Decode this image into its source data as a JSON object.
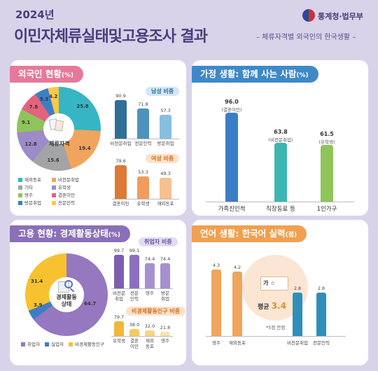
{
  "header": {
    "year": "2024년",
    "title": "이민자체류실태및고용조사 결과",
    "subtitle": "– 체류자격별 외국인의 한국생활 –",
    "logo_text": "통계청·법무부"
  },
  "panels": {
    "foreigners": {
      "title": "외국인 현황",
      "unit": "(%)",
      "center_label": "체류자격",
      "male_pill": "남성 비중",
      "female_pill": "여성 비중"
    },
    "family": {
      "title": "가정 생활: 함께 사는 사람",
      "unit": "(%)"
    },
    "employment": {
      "title": "고용 현황: 경제활동상태",
      "unit": "(%)",
      "center_label_1": "경제활동",
      "center_label_2": "상태",
      "employed_pill": "취업자 비중",
      "inactive_pill": "비경제활동인구 비중"
    },
    "korean": {
      "title": "언어 생활: 한국어 실력",
      "unit": "(점)",
      "center_book_text": "가 ☆",
      "average_label": "평균",
      "average_value": "3.4",
      "note": "*5점 만점"
    }
  },
  "chart_data": [
    {
      "type": "pie",
      "title": "외국인 현황",
      "center_label": "체류자격",
      "slices": [
        {
          "name": "재외동포",
          "value": 25.8,
          "color": "#36b6c4"
        },
        {
          "name": "비전문취업",
          "value": 19.4,
          "color": "#f1a45d"
        },
        {
          "name": "기타",
          "value": 15.6,
          "color": "#a2a4a6"
        },
        {
          "name": "유학생",
          "value": 12.8,
          "color": "#9d8ac9"
        },
        {
          "name": "영주",
          "value": 9.1,
          "color": "#8fc45a"
        },
        {
          "name": "결혼이민",
          "value": 7.8,
          "color": "#e3637e"
        },
        {
          "name": "방문취업",
          "value": 5.3,
          "color": "#3c7ec6"
        },
        {
          "name": "전문인력",
          "value": 4.2,
          "color": "#f7c94a"
        }
      ],
      "legend": [
        "재외동포",
        "비전문취업",
        "기타",
        "유학생",
        "영주",
        "결혼이민",
        "방문취업",
        "전문인력"
      ]
    },
    {
      "type": "bar",
      "title": "남성 비중",
      "categories": [
        "비전문취업",
        "전문인력",
        "방문취업"
      ],
      "values": [
        90.9,
        71.8,
        57.3
      ],
      "colors": [
        "#2f6f96",
        "#4d92bd",
        "#86bfdf"
      ]
    },
    {
      "type": "bar",
      "title": "여성 비중",
      "categories": [
        "결혼이민",
        "유학생",
        "재외동포"
      ],
      "values": [
        79.6,
        53.3,
        49.3
      ],
      "colors": [
        "#dd7a35",
        "#f09c5c",
        "#f7c090"
      ]
    },
    {
      "type": "bar",
      "title": "가정 생활: 함께 사는 사람",
      "unit": "%",
      "categories": [
        "가족친인척",
        "직장동료 등",
        "1인가구"
      ],
      "values": [
        96.0,
        63.8,
        61.5
      ],
      "sublabels": [
        "(결혼이민)",
        "(비전문취업)",
        "(유학생)"
      ],
      "colors": [
        "#3c7ec6",
        "#3cb6b0",
        "#8fc45a"
      ]
    },
    {
      "type": "pie",
      "title": "고용 현황: 경제활동상태",
      "center_label": "경제활동 상태",
      "slices": [
        {
          "name": "취업자",
          "value": 64.7,
          "color": "#9578c0"
        },
        {
          "name": "실업자",
          "value": 3.9,
          "color": "#3c7ec6"
        },
        {
          "name": "비경제활동인구",
          "value": 31.4,
          "color": "#f7c22f"
        }
      ],
      "legend": [
        "취업자",
        "실업자",
        "비경제활동인구"
      ]
    },
    {
      "type": "bar",
      "title": "취업자 비중",
      "categories": [
        "비전문 취업",
        "전문 인력",
        "영주",
        "방문 취업"
      ],
      "values": [
        99.7,
        99.1,
        74.4,
        74.4
      ],
      "colors": [
        "#7c5fb0",
        "#8d70bd",
        "#a690cf",
        "#a690cf"
      ]
    },
    {
      "type": "bar",
      "title": "비경제활동인구 비중",
      "categories": [
        "유학생",
        "결혼 이민",
        "재외 동포",
        "영주"
      ],
      "values": [
        79.7,
        38.0,
        32.0,
        21.8
      ],
      "colors": [
        "#f1b73a",
        "#f5c962",
        "#f7d581",
        "#f9e3a8"
      ]
    },
    {
      "type": "bar",
      "title": "언어 생활: 한국어 실력",
      "unit": "점",
      "categories": [
        "영주",
        "재외동포",
        "비전문취업",
        "전문인력"
      ],
      "values": [
        4.3,
        4.2,
        2.8,
        2.8
      ],
      "colors": [
        "#f1a45d",
        "#f1a45d",
        "#2f8fb8",
        "#2f8fb8"
      ],
      "ylim": [
        0,
        5
      ]
    }
  ]
}
